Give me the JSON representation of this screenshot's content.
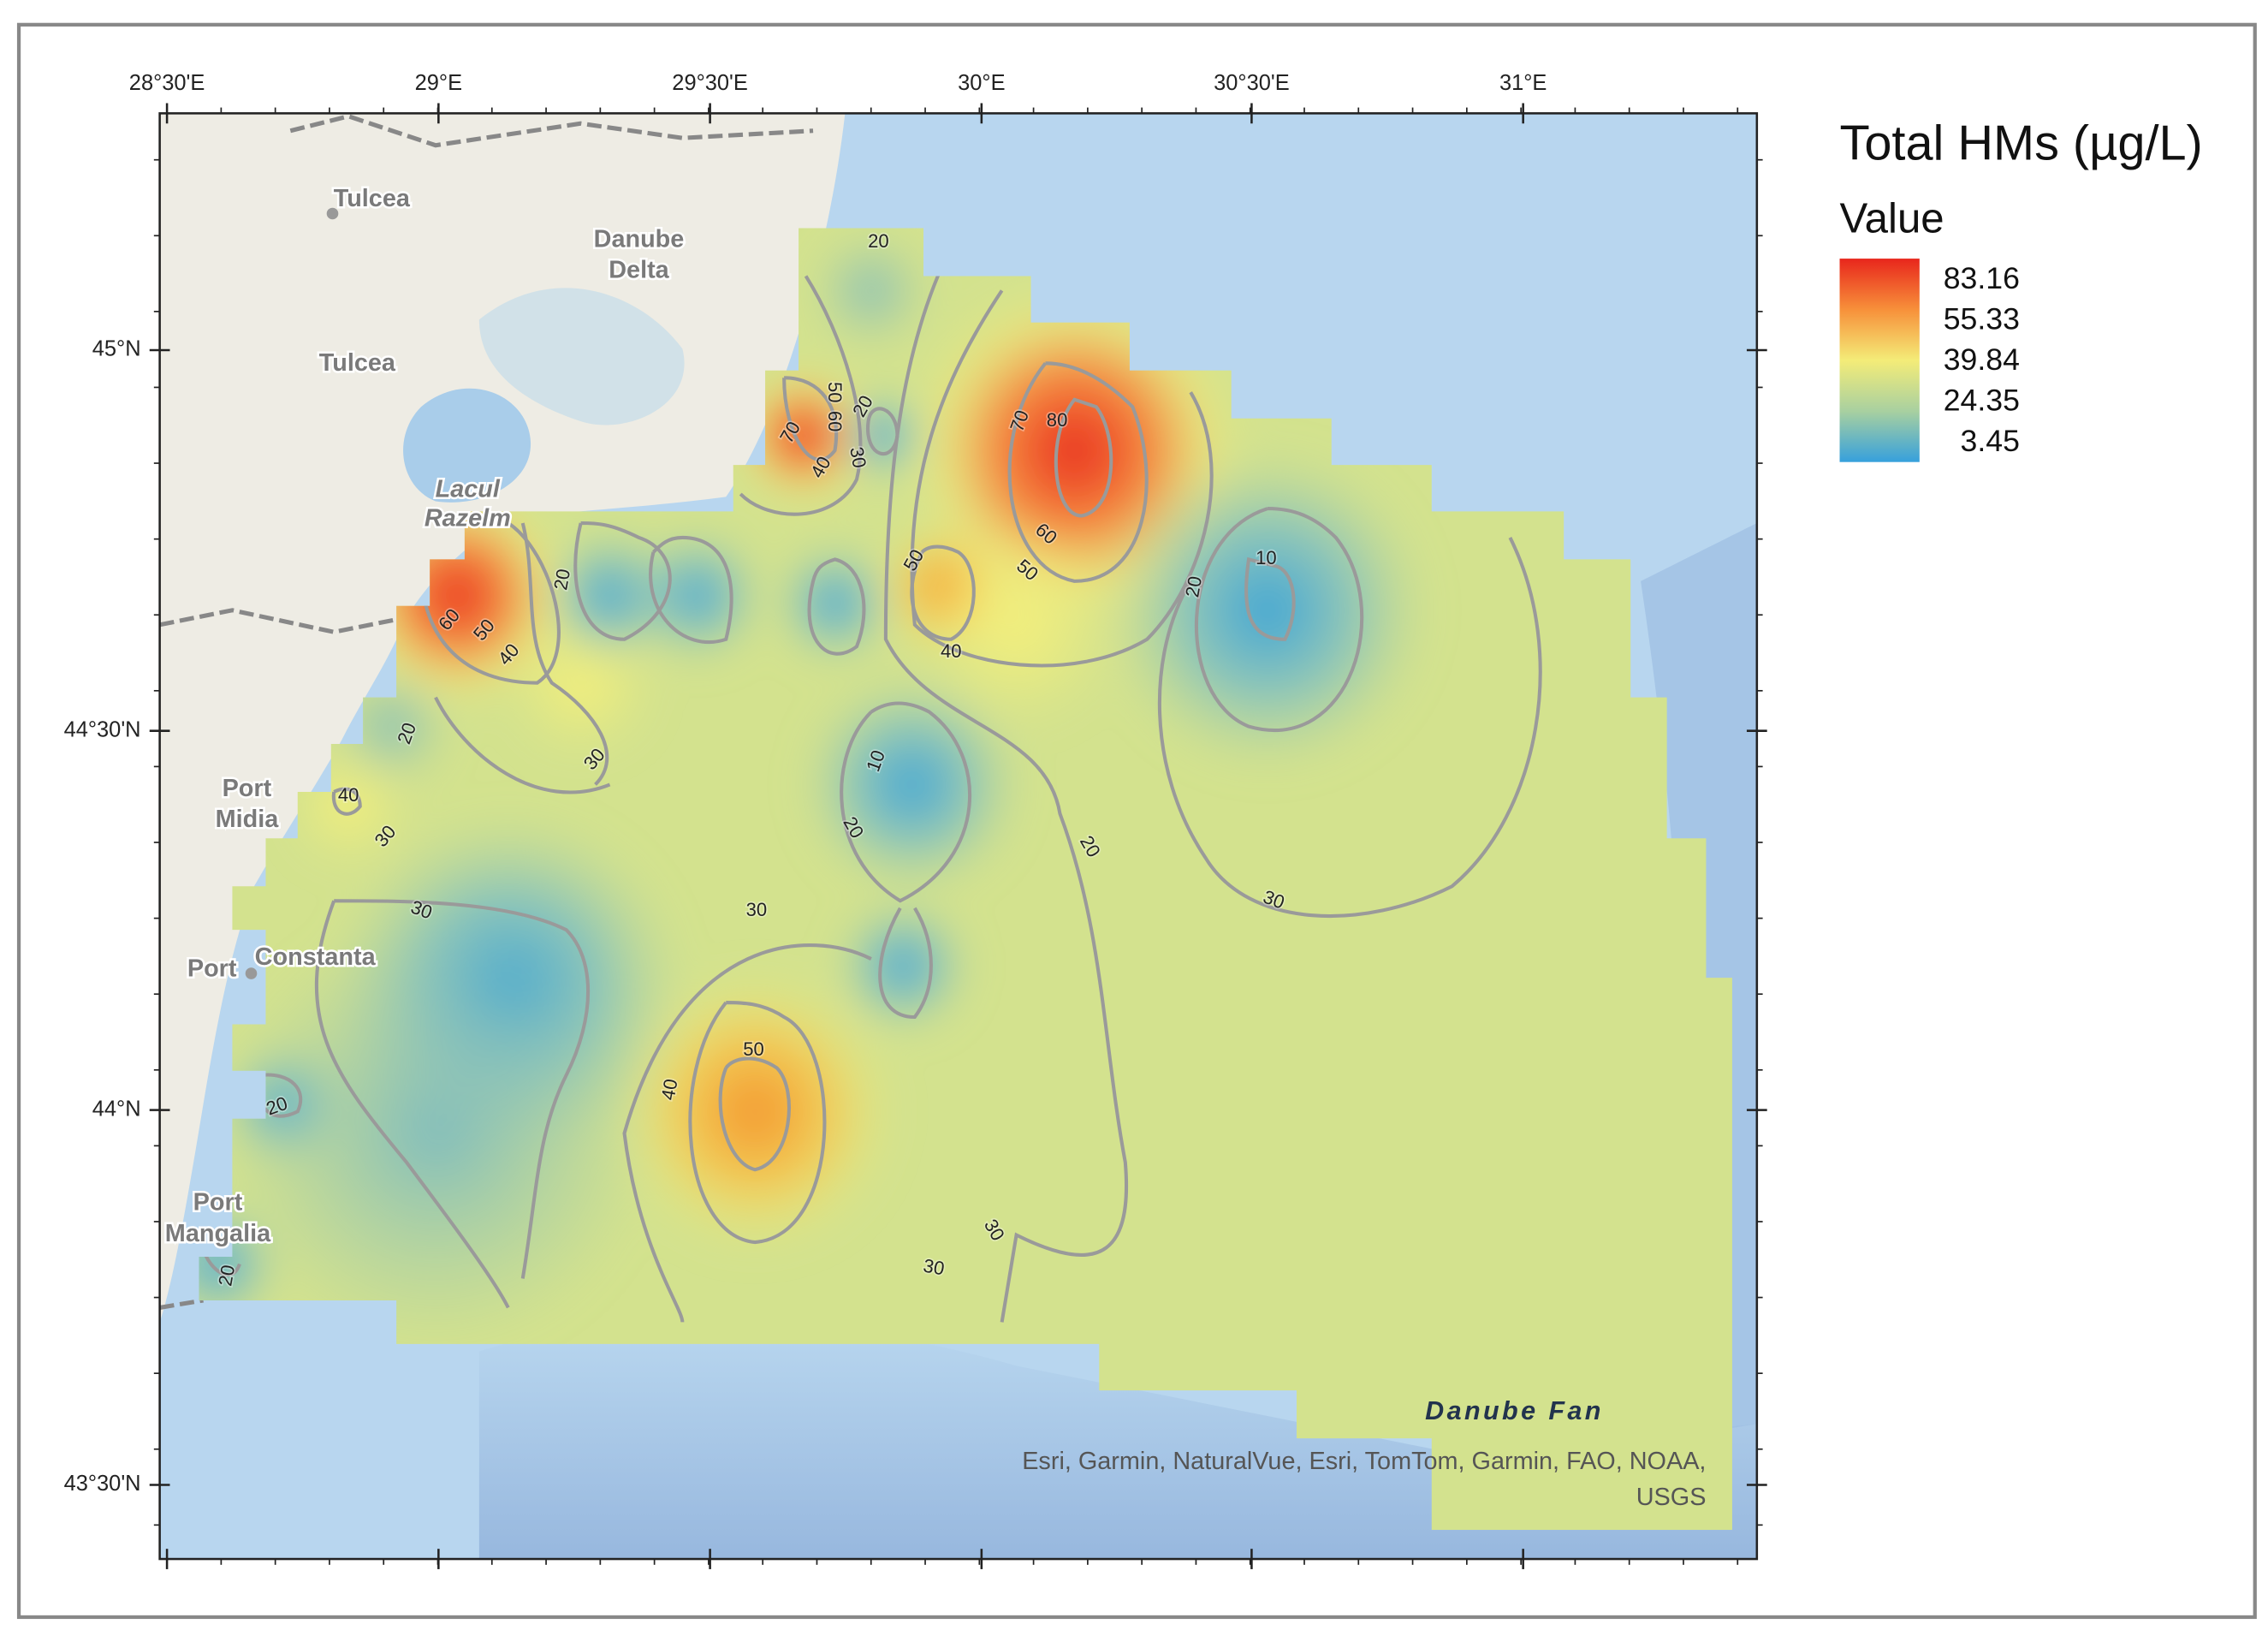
{
  "legend": {
    "title": "Total HMs (µg/L)",
    "subtitle": "Value",
    "labels": [
      83.16,
      55.33,
      39.84,
      24.35,
      3.45
    ]
  },
  "map": {
    "longitude_labels": [
      "28°30'E",
      "29°E",
      "29°30'E",
      "30°E",
      "30°30'E",
      "31°E"
    ],
    "latitude_labels": [
      "45°N",
      "44°30'N",
      "44°N",
      "43°30'N"
    ],
    "places": [
      [
        "Tulcea"
      ],
      [
        "Danube",
        "Delta"
      ],
      [
        "Tulcea"
      ],
      [
        "Lacul",
        "Razelm"
      ],
      [
        "Port",
        "Midia"
      ],
      [
        "Port"
      ],
      [
        "Constanta"
      ],
      [
        "Port",
        "Mangalia"
      ]
    ],
    "contour_labels": [
      20,
      50,
      60,
      20,
      70,
      40,
      30,
      70,
      80,
      60,
      50,
      50,
      40,
      20,
      60,
      50,
      40,
      20,
      30,
      10,
      20,
      40,
      30,
      10,
      20,
      30,
      30,
      20,
      30,
      50,
      40,
      20,
      30,
      30,
      20
    ],
    "feature_label": "Danube Fan",
    "attribution": [
      "Esri, Garmin, NaturalVue, Esri, TomTom, Garmin, FAO, NOAA,",
      "USGS"
    ]
  }
}
